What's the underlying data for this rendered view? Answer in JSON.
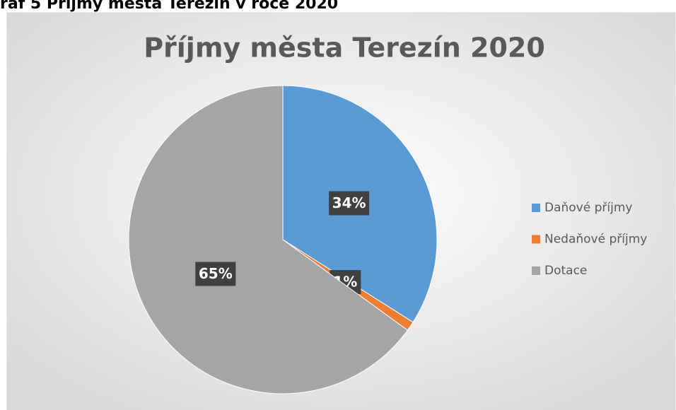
{
  "caption": "raf 5 Příjmy města Terezín v roce 2020",
  "chart_data": {
    "type": "pie",
    "title": "Příjmy města Terezín 2020",
    "categories": [
      "Daňové příjmy",
      "Nedaňové příjmy",
      "Dotace"
    ],
    "values": [
      34,
      1,
      65
    ],
    "value_labels": [
      "34%",
      "1%",
      "65%"
    ],
    "colors": [
      "#5b9bd5",
      "#ed7d31",
      "#a5a5a5"
    ],
    "legend": "right"
  }
}
